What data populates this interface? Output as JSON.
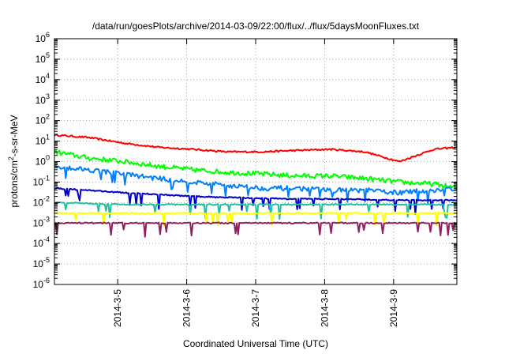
{
  "chart_data": {
    "type": "line",
    "title": "/data/run/goesPlots/archive/2014-03-09/22:00/flux/../flux/5daysMoonFluxes.txt",
    "xlabel": "Coordinated Universal Time (UTC)",
    "ylabel": "protons/cm2-s-sr-MeV",
    "ylabel_parts": {
      "before": "protons/cm",
      "sup": "2",
      "after": "-s-sr-MeV"
    },
    "yscale": "log",
    "ylim": [
      1e-06,
      1000000.0
    ],
    "xlim": [
      "2014-03-04T02:00",
      "2014-03-09T22:00"
    ],
    "grid": true,
    "x_ticks": [
      "2014-3-5",
      "2014-3-6",
      "2014-3-7",
      "2014-3-8",
      "2014-3-9"
    ],
    "y_ticks": [
      {
        "base": "10",
        "exp": "-6"
      },
      {
        "base": "10",
        "exp": "-5"
      },
      {
        "base": "10",
        "exp": "-4"
      },
      {
        "base": "10",
        "exp": "-3"
      },
      {
        "base": "10",
        "exp": "-2"
      },
      {
        "base": "10",
        "exp": "-1"
      },
      {
        "base": "10",
        "exp": "0"
      },
      {
        "base": "10",
        "exp": "1"
      },
      {
        "base": "10",
        "exp": "2"
      },
      {
        "base": "10",
        "exp": "3"
      },
      {
        "base": "10",
        "exp": "4"
      },
      {
        "base": "10",
        "exp": "5"
      },
      {
        "base": "10",
        "exp": "6"
      }
    ],
    "x": [
      "2014-03-04T02:00",
      "2014-03-04T14:00",
      "2014-03-05T02:00",
      "2014-03-05T14:00",
      "2014-03-06T02:00",
      "2014-03-06T14:00",
      "2014-03-07T02:00",
      "2014-03-07T14:00",
      "2014-03-08T02:00",
      "2014-03-08T14:00",
      "2014-03-09T02:00",
      "2014-03-09T14:00",
      "2014-03-09T22:00"
    ],
    "series": [
      {
        "color": "#ff0000",
        "values": [
          20,
          15,
          8,
          5,
          4,
          3,
          3,
          3.5,
          4,
          3,
          1,
          4,
          5
        ]
      },
      {
        "color": "#00ff00",
        "values": [
          3,
          1.5,
          1,
          0.6,
          0.4,
          0.3,
          0.25,
          0.2,
          0.2,
          0.15,
          0.1,
          0.08,
          0.05
        ]
      },
      {
        "color": "#0080ff",
        "values": [
          0.6,
          0.4,
          0.25,
          0.15,
          0.1,
          0.07,
          0.05,
          0.05,
          0.04,
          0.04,
          0.03,
          0.04,
          0.05
        ]
      },
      {
        "color": "#0000cc",
        "values": [
          0.05,
          0.04,
          0.03,
          0.025,
          0.02,
          0.018,
          0.016,
          0.015,
          0.015,
          0.014,
          0.013,
          0.013,
          0.013
        ]
      },
      {
        "color": "#20c0a0",
        "values": [
          0.01,
          0.009,
          0.008,
          0.008,
          0.008,
          0.008,
          0.008,
          0.008,
          0.008,
          0.008,
          0.008,
          0.008,
          0.008
        ]
      },
      {
        "color": "#ffff00",
        "values": [
          0.003,
          0.003,
          0.003,
          0.003,
          0.003,
          0.003,
          0.003,
          0.003,
          0.003,
          0.003,
          0.003,
          0.003,
          0.003
        ]
      },
      {
        "color": "#902060",
        "values": [
          0.001,
          0.001,
          0.001,
          0.001,
          0.001,
          0.001,
          0.001,
          0.001,
          0.001,
          0.001,
          0.001,
          0.001,
          0.001
        ]
      }
    ]
  }
}
